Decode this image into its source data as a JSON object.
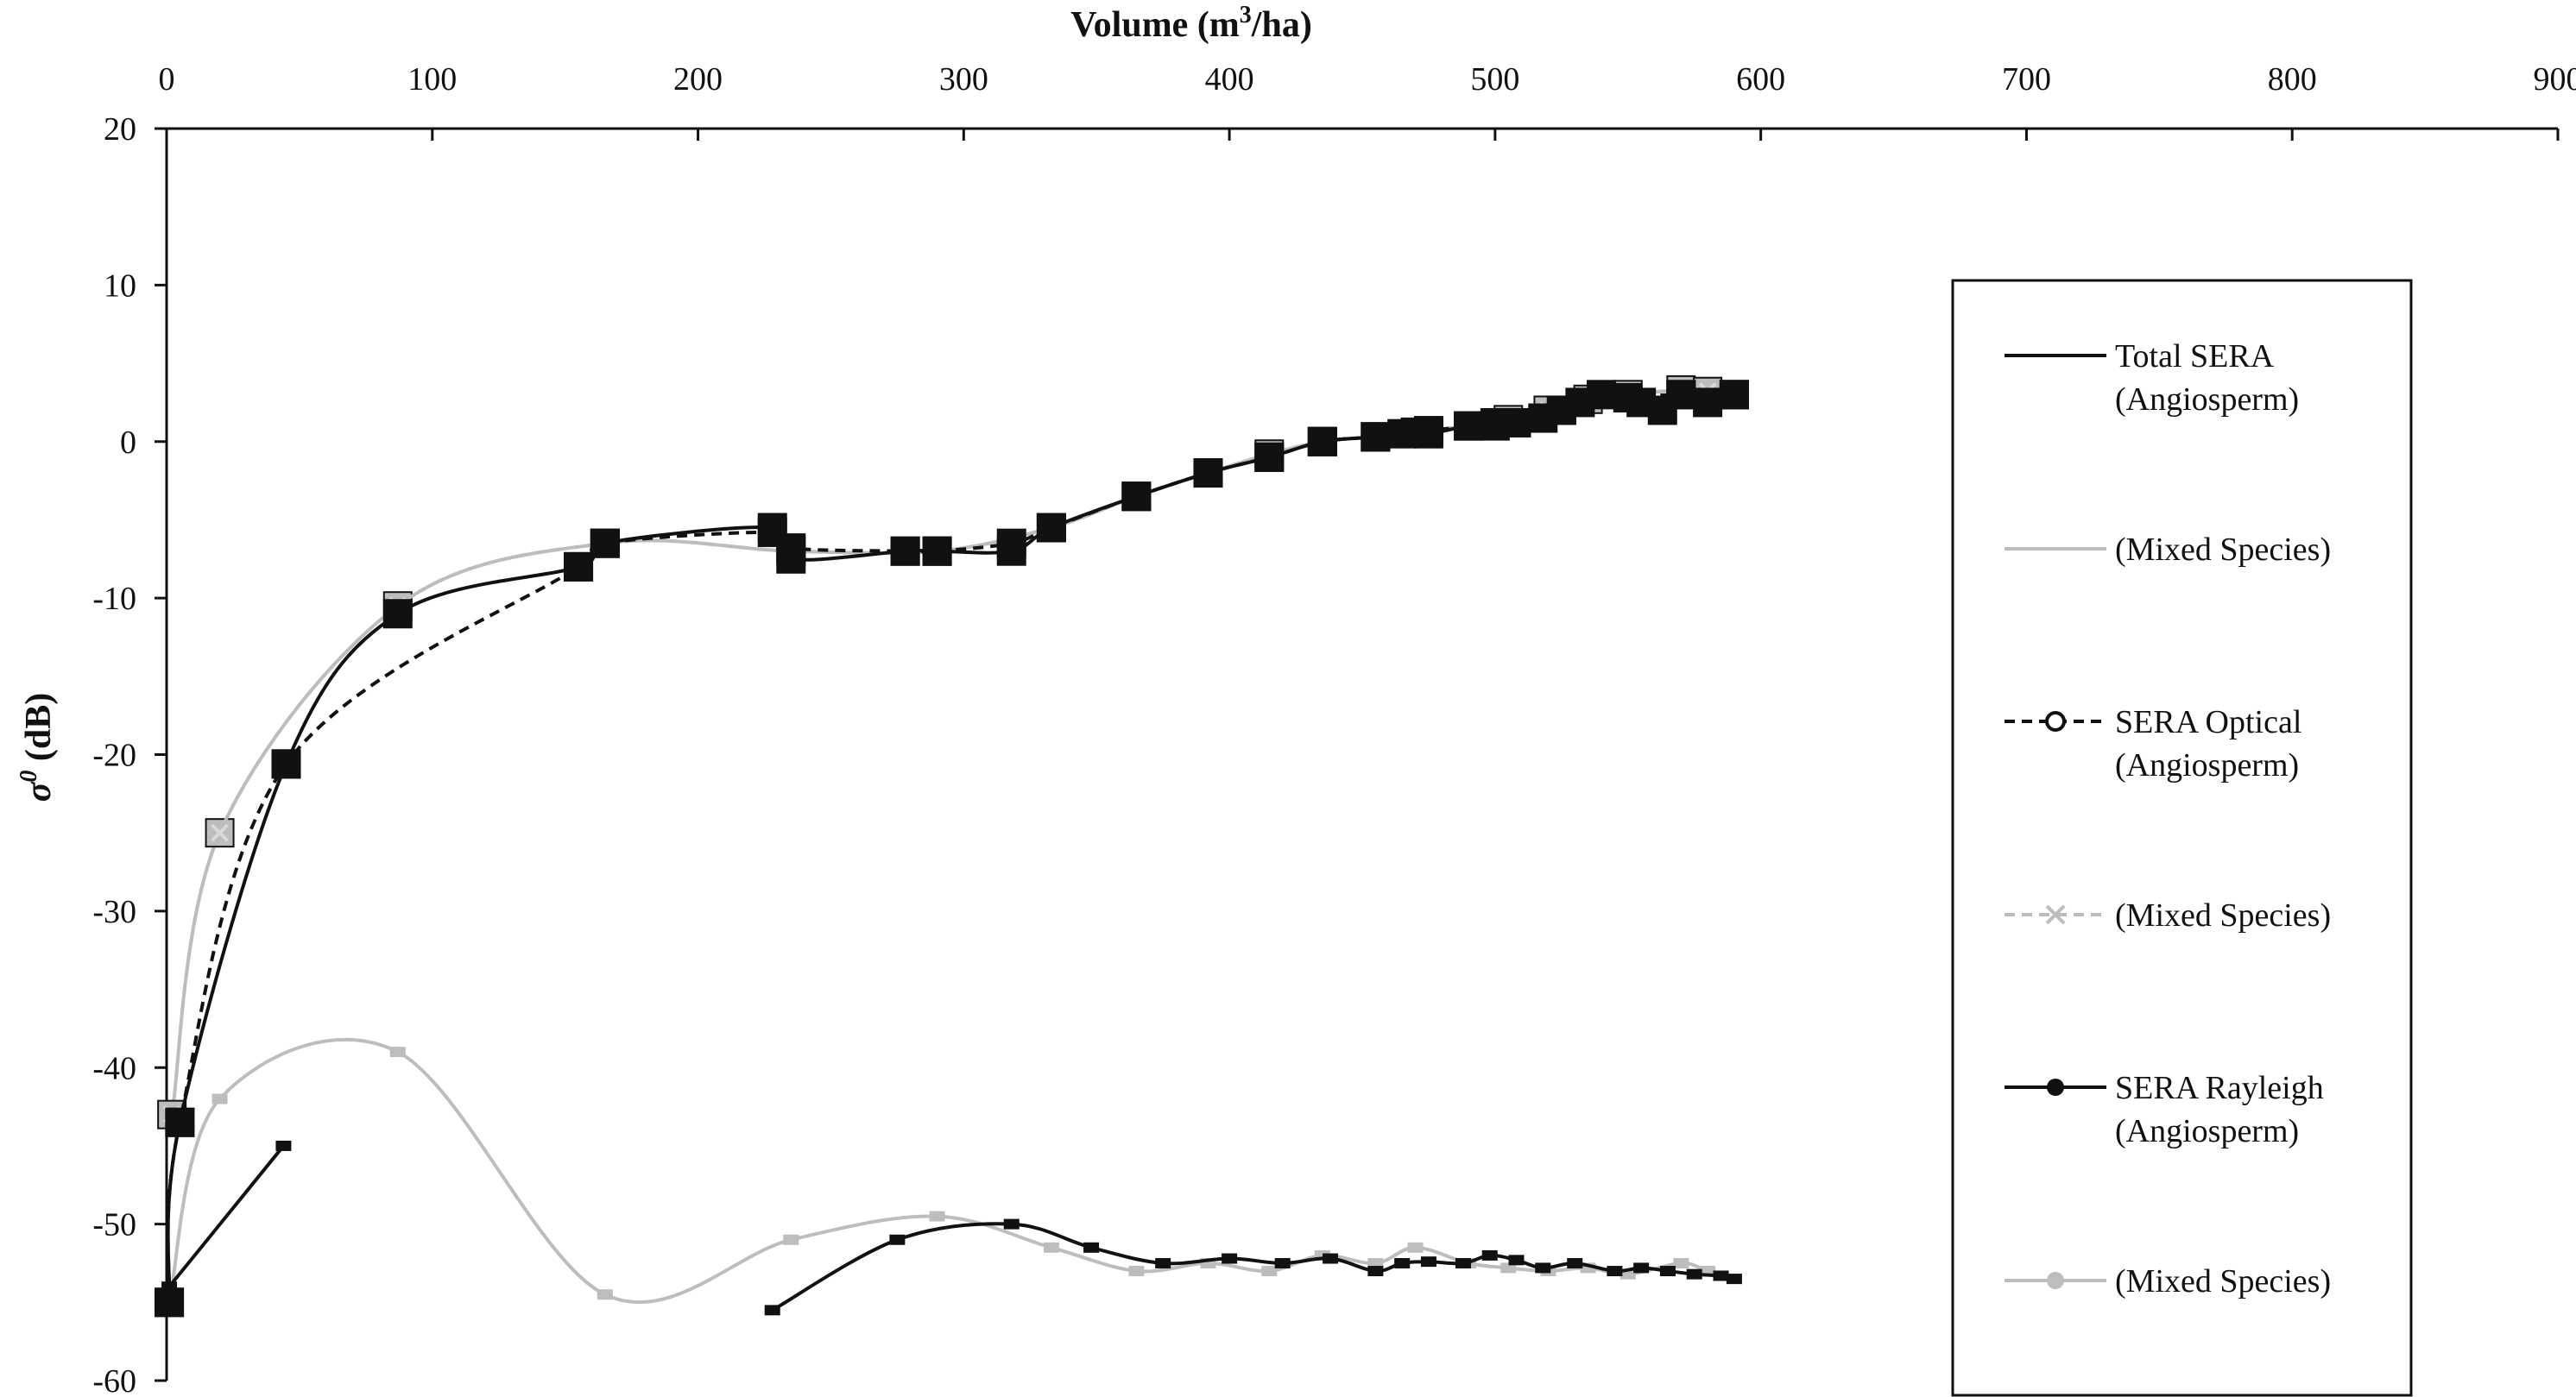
{
  "chart_data": {
    "type": "line",
    "title": "",
    "xlabel": "Volume (m3/ha)",
    "xlabel_parts": {
      "before": "Volume (m",
      "sup": "3",
      "after": "/ha)"
    },
    "ylabel": "σ0 (dB)",
    "ylabel_parts": {
      "symbol": "σ",
      "sup": "0",
      "after": " (dB)"
    },
    "x_axis_position": "top",
    "xlim": [
      0,
      900
    ],
    "ylim": [
      -60,
      20
    ],
    "xticks": [
      "0",
      "100",
      "200",
      "300",
      "400",
      "500",
      "600",
      "700",
      "800",
      "900"
    ],
    "yticks": [
      "20",
      "10",
      "0",
      "-10",
      "-20",
      "-30",
      "-40",
      "-50",
      "-60"
    ],
    "grid": false,
    "legend_position": "right",
    "legend": [
      {
        "id": "total-angio",
        "lines": [
          "Total SERA",
          "(Angiosperm)"
        ],
        "color": "#111111",
        "dash": "solid",
        "marker": "none"
      },
      {
        "id": "total-mixed",
        "lines": [
          "(Mixed Species)"
        ],
        "color": "#bdbdbd",
        "dash": "solid",
        "marker": "none"
      },
      {
        "id": "optical-angio",
        "lines": [
          "SERA Optical",
          "(Angiosperm)"
        ],
        "color": "#111111",
        "dash": "dashed",
        "marker": "open-circle"
      },
      {
        "id": "optical-mixed",
        "lines": [
          "(Mixed Species)"
        ],
        "color": "#bdbdbd",
        "dash": "dashed",
        "marker": "x"
      },
      {
        "id": "rayleigh-angio",
        "lines": [
          "SERA Rayleigh",
          "(Angiosperm)"
        ],
        "color": "#111111",
        "dash": "solid",
        "marker": "filled-circle"
      },
      {
        "id": "rayleigh-mixed",
        "lines": [
          "(Mixed Species)"
        ],
        "color": "#bdbdbd",
        "dash": "solid",
        "marker": "filled-circle"
      }
    ],
    "series": [
      {
        "id": "total-angio",
        "name": "Total SERA (Angiosperm)",
        "color": "#111111",
        "dash": "solid",
        "marker": "square",
        "x": [
          1,
          5,
          45,
          87,
          155,
          165,
          228,
          235,
          278,
          290,
          318,
          333,
          365,
          392,
          415,
          435,
          455,
          465,
          475,
          490,
          500,
          508,
          518,
          525,
          532,
          540,
          555,
          563,
          570,
          580,
          590
        ],
        "y": [
          -55,
          -43.5,
          -20.6,
          -11,
          -8,
          -6.5,
          -5.5,
          -7.5,
          -7,
          -7,
          -7,
          -5.5,
          -3.5,
          -2,
          -1,
          0,
          0.3,
          0.5,
          0.5,
          1,
          1,
          1.2,
          1.5,
          2,
          2.5,
          3,
          2.5,
          2,
          3,
          2.5,
          3
        ]
      },
      {
        "id": "total-mixed",
        "name": "Total SERA (Mixed Species)",
        "color": "#bdbdbd",
        "dash": "solid",
        "marker": "square",
        "x": [
          2,
          20,
          87,
          165,
          235,
          290,
          333,
          365,
          392,
          415,
          435,
          455,
          470,
          490,
          505,
          520,
          535,
          550,
          570,
          580,
          590
        ],
        "y": [
          -43,
          -25,
          -10.5,
          -6.5,
          -7,
          -7,
          -5.5,
          -3.5,
          -2,
          -0.8,
          0,
          0.3,
          0.6,
          1,
          1.4,
          2,
          2.7,
          3,
          3.3,
          3.2,
          3
        ]
      },
      {
        "id": "optical-angio",
        "name": "SERA Optical (Angiosperm)",
        "color": "#111111",
        "dash": "dashed",
        "marker": "square",
        "x": [
          1,
          5,
          45,
          155,
          165,
          228,
          235,
          278,
          290,
          318,
          333,
          365,
          392,
          415,
          435,
          455,
          475,
          500,
          525,
          550,
          570,
          590
        ],
        "y": [
          -55,
          -43.5,
          -20.6,
          -8,
          -6.5,
          -5.8,
          -6.8,
          -7,
          -7,
          -6.5,
          -5.5,
          -3.5,
          -2,
          -1,
          0,
          0.3,
          0.7,
          1.2,
          2,
          2.8,
          3,
          3
        ]
      },
      {
        "id": "optical-mixed",
        "name": "SERA Optical (Mixed Species)",
        "color": "#bdbdbd",
        "dash": "dashed",
        "marker": "x",
        "x": [
          2,
          20,
          87,
          165,
          235,
          290,
          333,
          365,
          392,
          415,
          435,
          455,
          470,
          490,
          505,
          520,
          535,
          550,
          570,
          580,
          590
        ],
        "y": [
          -43,
          -25,
          -10.5,
          -6.5,
          -7,
          -7,
          -5.5,
          -3.5,
          -2,
          -0.8,
          0,
          0.3,
          0.6,
          1,
          1.4,
          2,
          2.7,
          3,
          3.3,
          3.2,
          3
        ]
      },
      {
        "id": "rayleigh-angio-a",
        "name": "SERA Rayleigh (Angiosperm)",
        "color": "#111111",
        "dash": "solid",
        "marker": "small-square",
        "x": [
          1,
          44
        ],
        "y": [
          -54,
          -45
        ]
      },
      {
        "id": "rayleigh-angio-b",
        "name": "SERA Rayleigh (Angiosperm)",
        "color": "#111111",
        "dash": "solid",
        "marker": "small-square",
        "x": [
          228,
          275,
          318,
          348,
          375,
          400,
          420,
          438,
          455,
          465,
          475,
          488,
          498,
          508,
          518,
          530,
          545,
          555,
          565,
          575,
          585,
          590
        ],
        "y": [
          -55.5,
          -51,
          -50,
          -51.5,
          -52.5,
          -52.2,
          -52.5,
          -52.2,
          -53,
          -52.5,
          -52.4,
          -52.5,
          -52,
          -52.3,
          -52.8,
          -52.5,
          -53,
          -52.8,
          -53,
          -53.2,
          -53.3,
          -53.5
        ]
      },
      {
        "id": "rayleigh-mixed",
        "name": "SERA Rayleigh (Mixed Species)",
        "color": "#bdbdbd",
        "dash": "solid",
        "marker": "small-square",
        "x": [
          1,
          20,
          87,
          165,
          235,
          290,
          333,
          365,
          392,
          415,
          435,
          455,
          470,
          490,
          505,
          520,
          535,
          550,
          570,
          580,
          590
        ],
        "y": [
          -55,
          -42,
          -39,
          -54.5,
          -51,
          -49.5,
          -51.5,
          -53,
          -52.5,
          -53,
          -52,
          -52.5,
          -51.5,
          -52.5,
          -52.8,
          -53,
          -52.8,
          -53.2,
          -52.5,
          -53,
          -53.5
        ]
      }
    ]
  }
}
